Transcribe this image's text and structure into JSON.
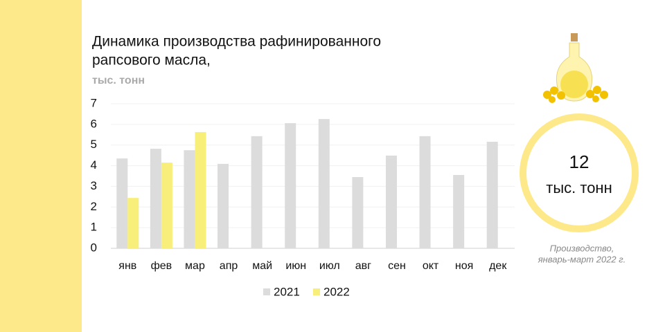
{
  "chart_data": {
    "type": "bar",
    "title": [
      "Динамика производства рафинированного",
      "рапсового масла,"
    ],
    "subtitle": "тыс. тонн",
    "categories": [
      "янв",
      "фев",
      "мар",
      "апр",
      "май",
      "июн",
      "июл",
      "авг",
      "сен",
      "окт",
      "ноя",
      "дек"
    ],
    "series": [
      {
        "name": "2021",
        "color": "#dcdcdc",
        "values": [
          4.35,
          4.82,
          4.75,
          4.09,
          5.43,
          6.06,
          6.26,
          3.45,
          4.49,
          5.43,
          3.55,
          5.16
        ]
      },
      {
        "name": "2022",
        "color": "#f7ef7a",
        "values": [
          2.44,
          4.15,
          5.63,
          null,
          null,
          null,
          null,
          null,
          null,
          null,
          null,
          null
        ]
      }
    ],
    "ylim": [
      0,
      7
    ],
    "yticks": [
      0,
      1,
      2,
      3,
      4,
      5,
      6,
      7
    ],
    "grid": true,
    "legend": "bottom"
  },
  "callout": {
    "value": 12,
    "unit": "тыс. тонн",
    "caption": [
      "Производство,",
      "январь-март 2022 г."
    ]
  }
}
